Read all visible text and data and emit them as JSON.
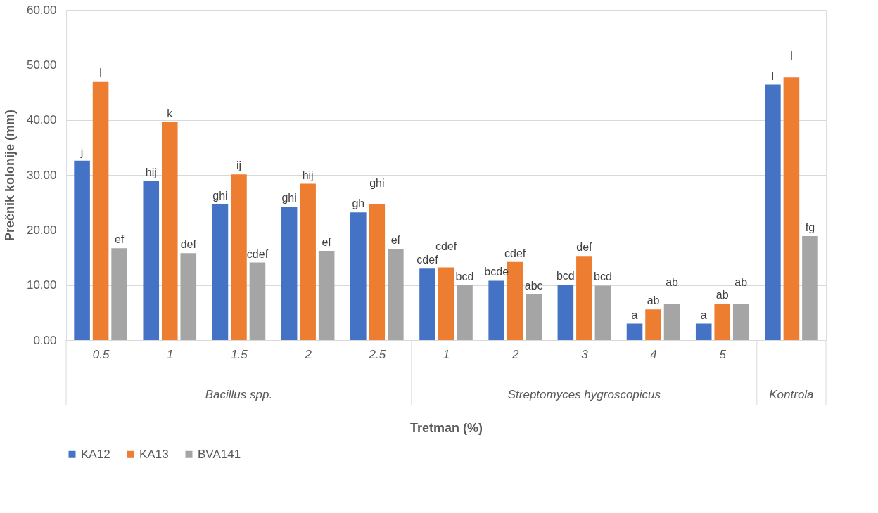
{
  "chart_data": {
    "type": "bar",
    "xlabel": "Tretman (%)",
    "ylabel": "Prečnik kolonije (mm)",
    "categories": [
      "0.5",
      "1",
      "1.5",
      "2",
      "2.5",
      "1",
      "2",
      "3",
      "4",
      "5",
      null
    ],
    "annotations": [
      "Bacillus spp.",
      "Streptomyces hygroscopicus",
      "Kontrola"
    ],
    "series": [
      {
        "name": "KA12",
        "color": "#4472c4",
        "values": [
          32.6,
          28.9,
          24.7,
          24.2,
          23.2,
          13.0,
          10.8,
          10.1,
          3.0,
          3.0,
          46.4
        ],
        "value_labels": [
          "j",
          "hij",
          "ghi",
          "ghi",
          "gh",
          "cdef",
          "bcde",
          "bcd",
          "a",
          "a",
          "l"
        ]
      },
      {
        "name": "KA13",
        "color": "#ed7d31",
        "values": [
          47.0,
          39.6,
          30.1,
          28.4,
          24.7,
          13.2,
          14.2,
          15.3,
          5.6,
          6.6,
          47.7
        ],
        "value_labels": [
          "l",
          "k",
          "ij",
          "hij",
          "ghi",
          "cdef",
          "cdef",
          "def",
          "ab",
          "ab",
          "l"
        ]
      },
      {
        "name": "BVA141",
        "color": "#a5a5a5",
        "values": [
          16.7,
          15.8,
          14.1,
          16.2,
          16.6,
          10.0,
          8.3,
          9.9,
          6.6,
          6.6,
          18.9
        ],
        "value_labels": [
          "ef",
          "def",
          "cdef",
          "ef",
          "ef",
          "bcd",
          "abc",
          "bcd",
          "ab",
          "ab",
          "fg"
        ]
      }
    ],
    "ylim": [
      0,
      60
    ],
    "yticks": [
      {
        "value": 0,
        "label": "0.00"
      },
      {
        "value": 10,
        "label": "10.00"
      },
      {
        "value": 20,
        "label": "20.00"
      },
      {
        "value": 30,
        "label": "30.00"
      },
      {
        "value": 40,
        "label": "40.00"
      },
      {
        "value": 50,
        "label": "50.00"
      },
      {
        "value": 60,
        "label": "60.00"
      }
    ],
    "grid": "y",
    "legend": "bottom"
  }
}
